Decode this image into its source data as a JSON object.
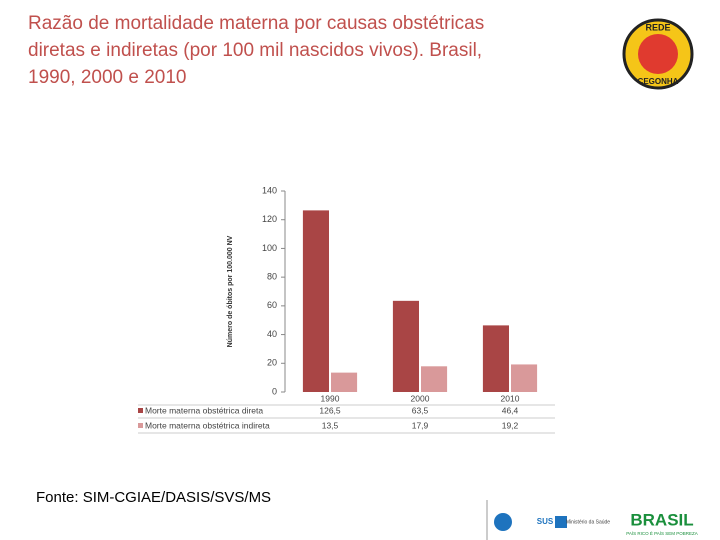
{
  "title_lines": [
    "Razão de mortalidade materna por causas obstétricas",
    "diretas e indiretas (por 100 mil nascidos vivos). Brasil,",
    "1990, 2000 e 2010"
  ],
  "chart_data": {
    "type": "bar",
    "ylabel": "Número de óbitos por 100.000 NV",
    "categories": [
      "1990",
      "2000",
      "2010"
    ],
    "series": [
      {
        "name": "Morte materna obstétrica direta",
        "color": "#a94545",
        "values": [
          126.5,
          63.5,
          46.4
        ],
        "value_labels": [
          "126,5",
          "63,5",
          "46,4"
        ]
      },
      {
        "name": "Morte materna obstétrica indireta",
        "color": "#d9999a",
        "values": [
          13.5,
          17.9,
          19.2
        ],
        "value_labels": [
          "13,5",
          "17,9",
          "19,2"
        ]
      }
    ],
    "ylim": [
      0,
      140
    ],
    "yticks": [
      0,
      20,
      40,
      60,
      80,
      100,
      120,
      140
    ]
  },
  "source": "Fonte: SIM-CGIAE/DASIS/SVS/MS",
  "logos": {
    "rede_top": "REDE",
    "rede_bottom": "CEGONHA",
    "sus": "SUS",
    "ministerio": "Ministério da Saúde",
    "brasil": "BRASIL",
    "brasil_slogan": "PAÍS RICO É PAÍS SEM POBREZA"
  }
}
